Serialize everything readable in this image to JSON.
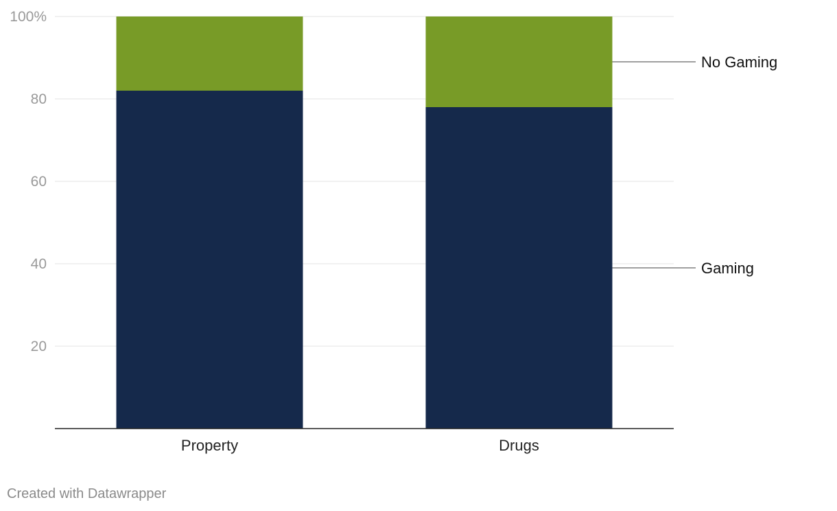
{
  "chart_data": {
    "type": "bar",
    "stacked": true,
    "categories": [
      "Property",
      "Drugs"
    ],
    "series": [
      {
        "name": "Gaming",
        "values": [
          82,
          78
        ],
        "color": "#15294b"
      },
      {
        "name": "No Gaming",
        "values": [
          18,
          22
        ],
        "color": "#789b27"
      }
    ],
    "title": "",
    "xlabel": "",
    "ylabel": "",
    "ylim": [
      0,
      100
    ],
    "yticks": [
      20,
      40,
      60,
      80,
      100
    ],
    "ytick_labels": [
      "20",
      "40",
      "60",
      "80",
      "100%"
    ],
    "grid": true,
    "legend": "direct labels on right"
  },
  "footer": {
    "credit": "Created with Datawrapper"
  }
}
